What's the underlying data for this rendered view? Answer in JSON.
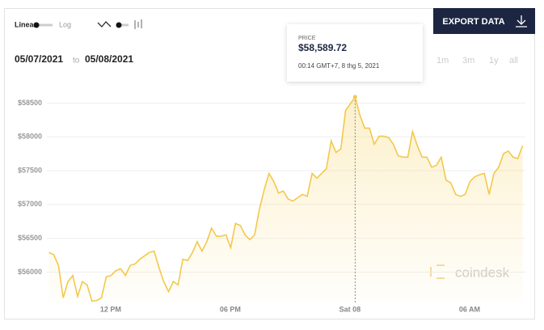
{
  "ui": {
    "scale_linear": "Linear",
    "scale_log": "Log",
    "export": "EXPORT DATA",
    "date_from": "05/07/2021",
    "date_sep": "to",
    "date_to": "05/08/2021",
    "ranges": [
      "1m",
      "3m",
      "1y",
      "all"
    ],
    "watermark": "coindesk"
  },
  "chart_data": {
    "type": "line",
    "x": [
      8.9,
      9.14,
      9.38,
      9.62,
      9.86,
      10.1,
      10.34,
      10.58,
      10.82,
      11.06,
      11.3,
      11.54,
      11.78,
      12.02,
      12.26,
      12.5,
      12.74,
      12.98,
      13.22,
      13.46,
      13.7,
      13.94,
      14.18,
      14.42,
      14.66,
      14.9,
      15.14,
      15.38,
      15.62,
      15.86,
      16.1,
      16.34,
      16.58,
      16.82,
      17.06,
      17.3,
      17.54,
      17.78,
      18.02,
      18.26,
      18.5,
      18.74,
      18.98,
      19.22,
      19.46,
      19.7,
      19.94,
      20.18,
      20.42,
      20.66,
      20.9,
      21.14,
      21.38,
      21.62,
      21.86,
      22.1,
      22.34,
      22.58,
      22.82,
      23.06,
      23.3,
      23.54,
      23.78,
      24.02,
      24.26,
      24.5,
      24.74,
      24.98,
      25.22,
      25.46,
      25.7,
      25.94,
      26.18,
      26.42,
      26.66,
      26.9,
      27.14,
      27.38,
      27.62,
      27.86,
      28.1,
      28.34,
      28.58,
      28.82,
      29.06,
      29.3,
      29.54,
      29.78,
      30.02,
      30.26,
      30.5,
      30.74,
      30.98,
      31.22,
      31.46,
      31.7,
      31.94,
      32.18,
      32.42,
      32.66
    ],
    "series": [
      {
        "name": "Price",
        "color": "#f3c84b",
        "values": [
          56290,
          56260,
          56100,
          55620,
          55860,
          55950,
          55640,
          55860,
          55810,
          55570,
          55580,
          55620,
          55930,
          55950,
          56020,
          56050,
          55950,
          56100,
          56120,
          56190,
          56240,
          56290,
          56310,
          56070,
          55860,
          55710,
          55860,
          55810,
          56190,
          56170,
          56290,
          56450,
          56310,
          56450,
          56650,
          56530,
          56530,
          56550,
          56360,
          56720,
          56690,
          56550,
          56480,
          56550,
          56930,
          57220,
          57460,
          57340,
          57170,
          57200,
          57080,
          57050,
          57100,
          57150,
          57120,
          57460,
          57390,
          57460,
          57530,
          57940,
          57770,
          57820,
          58390,
          58490,
          58589.72,
          58320,
          58130,
          58130,
          57890,
          58010,
          58010,
          57990,
          57890,
          57720,
          57700,
          57700,
          58080,
          57870,
          57700,
          57700,
          57550,
          57580,
          57700,
          57360,
          57320,
          57150,
          57120,
          57150,
          57340,
          57410,
          57440,
          57460,
          57150,
          57460,
          57550,
          57750,
          57790,
          57700,
          57680,
          57870
        ]
      }
    ],
    "tooltip": {
      "index": 64,
      "label": "PRICE",
      "value_label": "$58,589.72",
      "time": "00:14 GMT+7, 8 thg 5, 2021"
    },
    "xlim": [
      8.8,
      32.8
    ],
    "xticks": [
      {
        "value": 12,
        "label": "12 PM"
      },
      {
        "value": 18,
        "label": "06 PM"
      },
      {
        "value": 24,
        "label": "Sat 08"
      },
      {
        "value": 30,
        "label": "06 AM"
      }
    ],
    "ylim": [
      55550,
      58900
    ],
    "yticks": [
      {
        "value": 56000,
        "label": "$56000"
      },
      {
        "value": 56500,
        "label": "$56500"
      },
      {
        "value": 57000,
        "label": "$57000"
      },
      {
        "value": 57500,
        "label": "$57500"
      },
      {
        "value": 58000,
        "label": "$58000"
      },
      {
        "value": 58500,
        "label": "$58500"
      }
    ],
    "grid": true
  }
}
